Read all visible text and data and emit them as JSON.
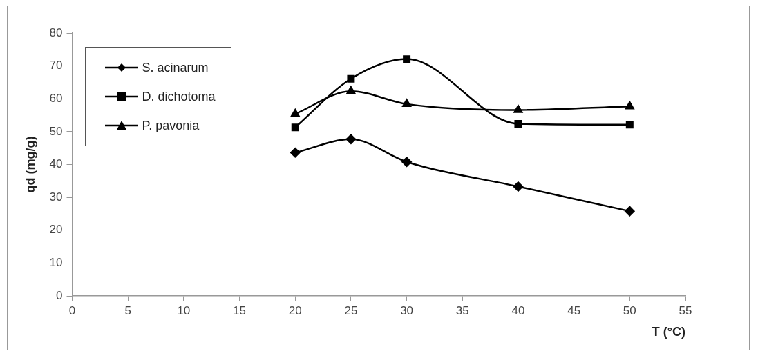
{
  "chart_data": {
    "type": "line",
    "xlabel": "T (°C)",
    "ylabel": "qd (mg/g)",
    "x": [
      20,
      25,
      30,
      40,
      50
    ],
    "series": [
      {
        "name": "S. acinarum",
        "color": "#000000",
        "marker": "diamond",
        "values": [
          43.6,
          47.7,
          40.8,
          33.3,
          25.8
        ]
      },
      {
        "name": "D. dichotoma",
        "color": "#000000",
        "marker": "square",
        "values": [
          51.3,
          66.1,
          72.1,
          52.4,
          52.1
        ]
      },
      {
        "name": "P. pavonia",
        "color": "#000000",
        "marker": "triangle",
        "values": [
          55.4,
          62.3,
          58.4,
          56.6,
          57.7
        ]
      }
    ],
    "xlim": [
      0,
      55
    ],
    "xticks": [
      0,
      5,
      10,
      15,
      20,
      25,
      30,
      35,
      40,
      45,
      50,
      55
    ],
    "ylim": [
      0,
      80
    ],
    "yticks": [
      0,
      10,
      20,
      30,
      40,
      50,
      60,
      70,
      80
    ],
    "grid": false,
    "legend": "top left",
    "line_style": "solid"
  }
}
